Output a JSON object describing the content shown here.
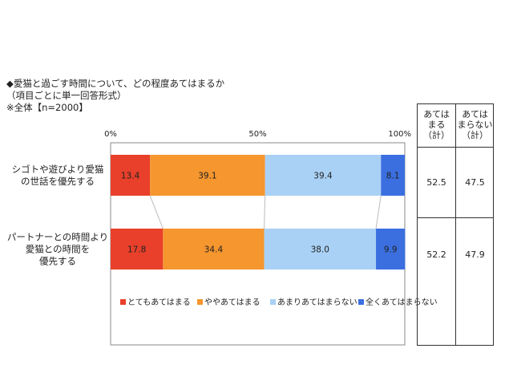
{
  "header": {
    "line1": "◆愛猫と過ごす時間について、どの程度あてはまるか",
    "line2": "（項目ごとに単一回答形式）",
    "line3": "※全体【n=2000】"
  },
  "summary": {
    "col_headers": [
      "あては\nまる\n（計）",
      "あては\nまらない\n（計）"
    ],
    "rows": [
      [
        "52.5",
        "47.5"
      ],
      [
        "52.2",
        "47.9"
      ]
    ]
  },
  "colors": {
    "c1": "#e8402a",
    "c2": "#f5962f",
    "c3": "#a9d1f5",
    "c4": "#3b6fe0"
  },
  "chart_data": {
    "type": "bar",
    "orientation": "horizontal-stacked-100",
    "categories": [
      "シゴトや遊びより愛猫\nの世話を優先する",
      "パートナーとの時間より\n愛猫との時間を\n優先する"
    ],
    "series": [
      {
        "name": "とてもあてはまる",
        "values": [
          13.4,
          17.8
        ]
      },
      {
        "name": "ややあてはまる",
        "values": [
          39.1,
          34.4
        ]
      },
      {
        "name": "あまりあてはまらない",
        "values": [
          39.4,
          38.0
        ]
      },
      {
        "name": "全くあてはまらない",
        "values": [
          8.1,
          9.9
        ]
      }
    ],
    "xticks": [
      "0%",
      "50%",
      "100%"
    ],
    "xlim": [
      0,
      100
    ],
    "legend": "bottom",
    "grid": false
  }
}
